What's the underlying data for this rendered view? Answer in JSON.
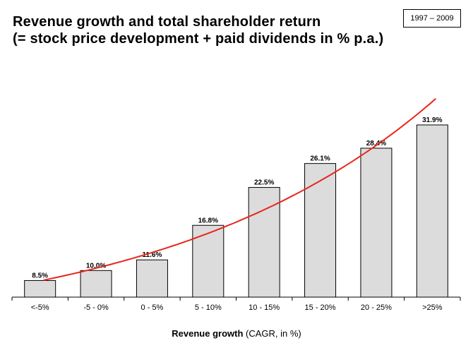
{
  "chart_data": {
    "type": "bar",
    "title": "Revenue growth and total shareholder return",
    "subtitle": "(= stock price development + paid dividends in % p.a.)",
    "period_label": "1997 – 2009",
    "xlabel_bold": "Revenue growth",
    "xlabel_rest": " (CAGR, in %)",
    "ylabel": "",
    "categories": [
      "<-5%",
      "-5 - 0%",
      "0 - 5%",
      "5 - 10%",
      "10 - 15%",
      "15 - 20%",
      "20 - 25%",
      ">25%"
    ],
    "values": [
      8.5,
      10.0,
      11.6,
      16.8,
      22.5,
      26.1,
      28.4,
      31.9
    ],
    "data_labels": [
      "8.5%",
      "10.0%",
      "11.6%",
      "16.8%",
      "22.5%",
      "26.1%",
      "28.4%",
      "31.9%"
    ],
    "ylim": [
      6,
      33
    ],
    "grid": false,
    "trendline": "exponential",
    "colors": {
      "bar_fill": "#dcdcdc",
      "bar_stroke": "#000000",
      "trendline": "#e8261c"
    }
  }
}
